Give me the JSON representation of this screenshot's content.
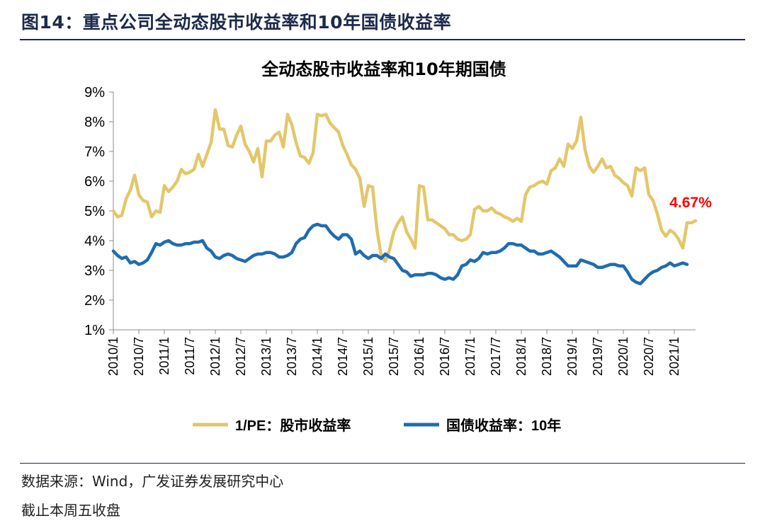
{
  "figure": {
    "title": "图14：重点公司全动态股市收益率和10年国债收益率",
    "source": "数据来源：Wind，广发证券发展研究中心",
    "note": "截止本周五收盘"
  },
  "chart_data": {
    "type": "line",
    "title": "全动态股市收益率和10年期国债",
    "xlabel": "",
    "ylabel": "",
    "ylim": [
      1,
      9
    ],
    "ytick_labels": [
      "1%",
      "2%",
      "3%",
      "4%",
      "5%",
      "6%",
      "7%",
      "8%",
      "9%"
    ],
    "xtick_labels": [
      "2010/1",
      "2010/7",
      "2011/1",
      "2011/7",
      "2012/1",
      "2012/7",
      "2013/1",
      "2013/7",
      "2014/1",
      "2014/7",
      "2015/1",
      "2015/7",
      "2016/1",
      "2016/7",
      "2017/1",
      "2017/7",
      "2018/1",
      "2018/7",
      "2019/1",
      "2019/7",
      "2020/1",
      "2020/7",
      "2021/1"
    ],
    "x_start": "2010/1",
    "x_end": "2021/4",
    "grid": false,
    "legend_position": "bottom",
    "annotation": {
      "text": "4.67%",
      "series": "1/PE：股市收益率",
      "color": "#ff0000"
    },
    "series": [
      {
        "name": "1/PE：股市收益率",
        "color": "#e3c76a",
        "values": [
          5.0,
          4.8,
          4.85,
          5.4,
          5.7,
          6.2,
          5.55,
          5.35,
          5.3,
          4.8,
          5.0,
          4.95,
          5.85,
          5.65,
          5.8,
          6.0,
          6.4,
          6.25,
          6.3,
          6.4,
          6.9,
          6.5,
          6.9,
          7.3,
          8.4,
          7.75,
          7.75,
          7.2,
          7.15,
          7.55,
          7.85,
          7.25,
          7.0,
          6.65,
          7.1,
          6.15,
          7.35,
          7.35,
          7.55,
          7.65,
          7.15,
          8.25,
          7.9,
          7.3,
          6.85,
          6.8,
          6.6,
          6.95,
          8.25,
          8.2,
          8.25,
          7.95,
          7.8,
          7.65,
          7.2,
          6.9,
          6.55,
          6.4,
          6.1,
          5.15,
          5.85,
          5.8,
          4.4,
          3.5,
          3.3,
          3.7,
          4.3,
          4.6,
          4.8,
          4.3,
          4.05,
          3.75,
          5.85,
          5.8,
          4.7,
          4.7,
          4.6,
          4.5,
          4.4,
          4.2,
          4.2,
          4.05,
          4.0,
          4.05,
          4.2,
          5.05,
          5.15,
          5.0,
          5.0,
          5.1,
          4.95,
          4.9,
          4.8,
          4.75,
          4.65,
          4.75,
          4.65,
          5.55,
          5.8,
          5.85,
          5.95,
          6.0,
          5.9,
          6.35,
          6.45,
          6.75,
          6.5,
          7.25,
          7.1,
          7.35,
          8.15,
          7.05,
          6.5,
          6.3,
          6.5,
          6.75,
          6.45,
          6.5,
          6.2,
          6.1,
          5.95,
          5.85,
          5.5,
          6.45,
          6.35,
          6.45,
          5.55,
          5.35,
          4.9,
          4.35,
          4.15,
          4.35,
          4.25,
          4.05,
          3.75,
          4.6,
          4.6,
          4.67
        ]
      },
      {
        "name": "国债收益率：10年",
        "color": "#1f6cb0",
        "values": [
          3.65,
          3.5,
          3.4,
          3.45,
          3.25,
          3.3,
          3.2,
          3.25,
          3.35,
          3.6,
          3.9,
          3.85,
          3.95,
          4.0,
          3.9,
          3.85,
          3.85,
          3.9,
          3.9,
          3.95,
          3.95,
          4.0,
          3.75,
          3.65,
          3.45,
          3.4,
          3.5,
          3.55,
          3.5,
          3.4,
          3.35,
          3.3,
          3.4,
          3.5,
          3.55,
          3.55,
          3.6,
          3.6,
          3.55,
          3.45,
          3.45,
          3.5,
          3.6,
          3.9,
          4.05,
          4.1,
          4.35,
          4.5,
          4.55,
          4.5,
          4.5,
          4.3,
          4.15,
          4.05,
          4.2,
          4.2,
          4.05,
          3.55,
          3.65,
          3.5,
          3.4,
          3.5,
          3.5,
          3.4,
          3.55,
          3.45,
          3.4,
          3.2,
          3.0,
          2.95,
          2.8,
          2.85,
          2.85,
          2.85,
          2.9,
          2.9,
          2.85,
          2.75,
          2.7,
          2.75,
          2.7,
          2.85,
          3.15,
          3.2,
          3.35,
          3.3,
          3.4,
          3.6,
          3.55,
          3.6,
          3.6,
          3.65,
          3.75,
          3.9,
          3.9,
          3.85,
          3.85,
          3.75,
          3.65,
          3.65,
          3.55,
          3.55,
          3.6,
          3.65,
          3.55,
          3.45,
          3.3,
          3.15,
          3.15,
          3.15,
          3.35,
          3.3,
          3.25,
          3.2,
          3.1,
          3.1,
          3.15,
          3.2,
          3.2,
          3.15,
          3.15,
          2.95,
          2.7,
          2.6,
          2.55,
          2.7,
          2.85,
          2.95,
          3.0,
          3.1,
          3.15,
          3.25,
          3.15,
          3.2,
          3.25,
          3.2
        ]
      }
    ]
  }
}
